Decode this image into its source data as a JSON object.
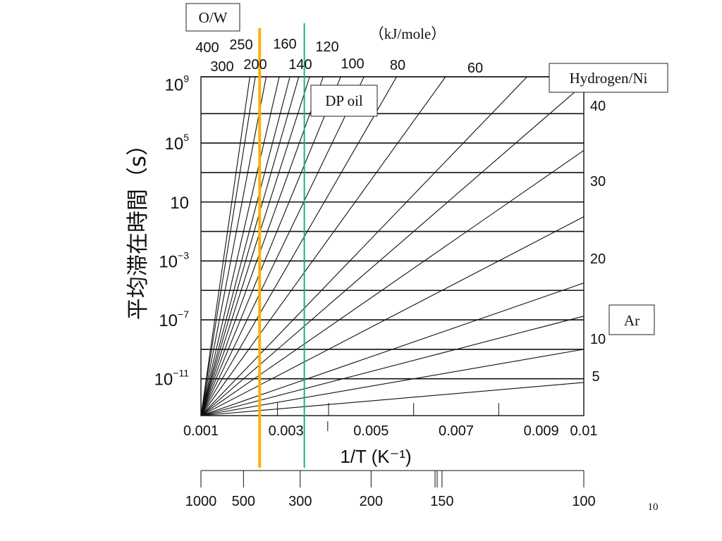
{
  "chart_data": {
    "type": "line",
    "xlabel": "1/T (K⁻¹)",
    "ylabel": "平均滞在時間（s）",
    "xlim": [
      0.001,
      0.01
    ],
    "ylim_log10": [
      -13.5,
      9.5
    ],
    "x_ticks": [
      "0.001",
      "0.003",
      "0.005",
      "0.007",
      "0.009",
      "0.01"
    ],
    "x_tick_values": [
      0.001,
      0.003,
      0.005,
      0.007,
      0.009,
      0.01
    ],
    "y_ticks": [
      {
        "base": "10",
        "exp": "9",
        "log": 9
      },
      {
        "base": "10",
        "exp": "5",
        "log": 5
      },
      {
        "base": "10",
        "exp": "",
        "log": 1
      },
      {
        "base": "10",
        "exp": "−3",
        "log": -3
      },
      {
        "base": "10",
        "exp": "−7",
        "log": -7
      },
      {
        "base": "10",
        "exp": "−11",
        "log": -11
      }
    ],
    "grid_log_values": [
      9.5,
      7,
      5,
      3,
      1,
      -1,
      -3,
      -5,
      -7,
      -9,
      -11
    ],
    "temperature_axis": {
      "labels": [
        "1000",
        "500",
        "300",
        "200",
        "150",
        "100"
      ],
      "values": [
        1000,
        500,
        300,
        200,
        150,
        100
      ]
    },
    "energy_unit": "（kJ/mole）",
    "series": [
      {
        "energy": 400,
        "name": "400"
      },
      {
        "energy": 300,
        "name": "300"
      },
      {
        "energy": 250,
        "name": "250"
      },
      {
        "energy": 200,
        "name": "200"
      },
      {
        "energy": 160,
        "name": "160"
      },
      {
        "energy": 140,
        "name": "140"
      },
      {
        "energy": 120,
        "name": "120"
      },
      {
        "energy": 100,
        "name": "100"
      },
      {
        "energy": 80,
        "name": "80"
      },
      {
        "energy": 60,
        "name": "60"
      },
      {
        "energy": 40,
        "name": "40"
      },
      {
        "energy": 30,
        "name": "30"
      },
      {
        "energy": 20,
        "name": "20"
      },
      {
        "energy": 10,
        "name": "10"
      },
      {
        "energy": 5,
        "name": "5"
      }
    ],
    "extra_unlabeled_energies": [
      360,
      220,
      180,
      50,
      15
    ],
    "vertical_markers": [
      {
        "name": "O/W",
        "x": 0.00238,
        "color": "#f5b301"
      },
      {
        "name": "DP oil",
        "x": 0.00343,
        "color": "#16b38a"
      }
    ],
    "annotations": [
      "O/W",
      "DP oil",
      "Hydrogen/Ni",
      "Ar"
    ]
  },
  "page_number": "10",
  "colors": {
    "ow_line": "#f5b301",
    "dp_line": "#16b38a",
    "plot_line": "#111111"
  }
}
